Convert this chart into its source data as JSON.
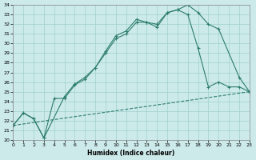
{
  "xlabel": "Humidex (Indice chaleur)",
  "xlim": [
    0,
    23
  ],
  "ylim": [
    20,
    34
  ],
  "xticks": [
    0,
    1,
    2,
    3,
    4,
    5,
    6,
    7,
    8,
    9,
    10,
    11,
    12,
    13,
    14,
    15,
    16,
    17,
    18,
    19,
    20,
    21,
    22,
    23
  ],
  "yticks": [
    20,
    21,
    22,
    23,
    24,
    25,
    26,
    27,
    28,
    29,
    30,
    31,
    32,
    33,
    34
  ],
  "line_color": "#2d7d6e",
  "bg_color": "#cdeaea",
  "grid_color": "#9ecece",
  "line1_x": [
    0,
    1,
    2,
    3,
    4,
    5,
    6,
    7,
    8,
    9,
    10,
    11,
    12,
    13,
    14,
    15,
    16,
    17,
    18,
    19,
    20,
    21,
    22,
    23
  ],
  "line1_y": [
    21.5,
    22.8,
    22.2,
    20.2,
    24.3,
    24.3,
    25.7,
    26.3,
    27.5,
    29.0,
    30.5,
    31.0,
    32.2,
    32.2,
    31.7,
    33.2,
    33.5,
    33.0,
    29.5,
    25.5,
    26.0,
    25.5,
    25.5,
    25.0
  ],
  "line2_x": [
    0,
    1,
    2,
    3,
    5,
    6,
    7,
    8,
    9,
    10,
    11,
    12,
    13,
    14,
    15,
    16,
    17,
    18,
    19,
    20,
    22,
    23
  ],
  "line2_y": [
    21.5,
    22.8,
    22.2,
    20.2,
    24.5,
    25.8,
    26.5,
    27.5,
    29.2,
    30.8,
    31.3,
    32.5,
    32.2,
    32.0,
    33.2,
    33.5,
    34.0,
    33.2,
    32.0,
    31.5,
    26.5,
    25.0
  ],
  "line3_x": [
    0,
    23
  ],
  "line3_y": [
    21.5,
    25.0
  ]
}
